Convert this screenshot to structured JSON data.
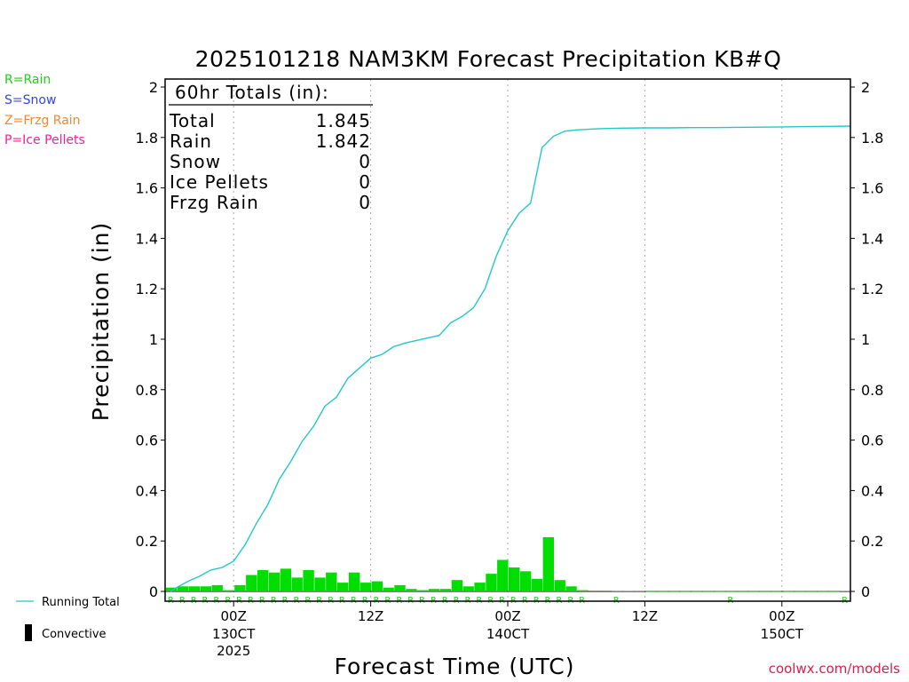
{
  "chart_data": {
    "type": "bar",
    "title": "2025101218 NAM3KM Forecast Precipitation KB#Q",
    "xlabel": "Forecast Time (UTC)",
    "ylabel": "Precipitation (in)",
    "ylim": [
      0,
      2
    ],
    "yticks": [
      "0",
      "0.2",
      "0.4",
      "0.6",
      "0.8",
      "1",
      "1.2",
      "1.4",
      "1.6",
      "1.8",
      "2"
    ],
    "xlim_hours": [
      0,
      60
    ],
    "x_ticks": [
      {
        "hour": 6,
        "label": "00Z",
        "sub": "130CT",
        "sub2": "2025"
      },
      {
        "hour": 18,
        "label": "12Z",
        "sub": "",
        "sub2": ""
      },
      {
        "hour": 30,
        "label": "00Z",
        "sub": "140CT",
        "sub2": ""
      },
      {
        "hour": 42,
        "label": "12Z",
        "sub": "",
        "sub2": ""
      },
      {
        "hour": 54,
        "label": "00Z",
        "sub": "150CT",
        "sub2": ""
      }
    ],
    "hourly_precip": {
      "color": "#00dd00",
      "start_hour": 1,
      "values": [
        0.015,
        0.02,
        0.02,
        0.02,
        0.025,
        0.005,
        0.025,
        0.065,
        0.085,
        0.075,
        0.09,
        0.055,
        0.085,
        0.055,
        0.075,
        0.035,
        0.075,
        0.035,
        0.04,
        0.015,
        0.025,
        0.01,
        0.005,
        0.01,
        0.01,
        0.045,
        0.02,
        0.035,
        0.07,
        0.125,
        0.095,
        0.08,
        0.05,
        0.215,
        0.045,
        0.02,
        0.005,
        0.003,
        0.003,
        0.002,
        0.002,
        0.002,
        0.001,
        0.001,
        0.001,
        0.001,
        0.001,
        0.001,
        0.001,
        0.001,
        0.001,
        0.001,
        0.001,
        0.001,
        0.001,
        0.001,
        0.001,
        0.001,
        0.001,
        0.002
      ]
    },
    "running_total": {
      "name": "Running Total",
      "color": "#22c8c8",
      "hours": [
        0.5,
        1,
        2,
        3,
        4,
        5,
        6,
        7,
        8,
        9,
        10,
        11,
        12,
        13,
        14,
        15,
        16,
        17,
        18,
        19,
        20,
        21,
        22,
        23,
        24,
        25,
        26,
        27,
        28,
        29,
        30,
        31,
        32,
        33,
        34,
        35,
        36,
        38,
        40,
        42,
        44,
        46,
        48,
        50,
        52,
        54,
        56,
        58,
        60
      ],
      "values": [
        0,
        0.015,
        0.04,
        0.06,
        0.085,
        0.095,
        0.12,
        0.185,
        0.27,
        0.345,
        0.445,
        0.515,
        0.595,
        0.655,
        0.735,
        0.77,
        0.845,
        0.885,
        0.925,
        0.94,
        0.97,
        0.985,
        0.995,
        1.005,
        1.015,
        1.065,
        1.09,
        1.125,
        1.2,
        1.33,
        1.43,
        1.5,
        1.54,
        1.76,
        1.805,
        1.825,
        1.83,
        1.835,
        1.837,
        1.838,
        1.838,
        1.839,
        1.839,
        1.84,
        1.841,
        1.842,
        1.843,
        1.844,
        1.845
      ]
    },
    "ptype_markers": {
      "letter": "R",
      "hours": [
        1,
        2,
        3,
        4,
        5,
        6,
        7,
        8,
        9,
        10,
        11,
        12,
        13,
        14,
        15,
        16,
        17,
        18,
        19,
        20,
        21,
        22,
        23,
        24,
        25,
        26,
        27,
        28,
        29,
        30,
        31,
        32,
        33,
        34,
        35,
        36,
        37,
        40,
        50,
        60
      ]
    },
    "totals_box": {
      "header": "60hr Totals (in):",
      "rows": [
        {
          "label": "Total",
          "value": "1.845"
        },
        {
          "label": "Rain",
          "value": "1.842"
        },
        {
          "label": "Snow",
          "value": "0"
        },
        {
          "label": "Ice Pellets",
          "value": "0"
        },
        {
          "label": "Frzg Rain",
          "value": "0"
        }
      ]
    },
    "bottom_legend": [
      {
        "label": "Running Total",
        "kind": "line",
        "color": "#22c8c8"
      },
      {
        "label": "Convective",
        "kind": "bar",
        "color": "#000000"
      }
    ]
  },
  "precip_types": [
    {
      "label": "R=Rain",
      "color": "#22cc22"
    },
    {
      "label": "S=Snow",
      "color": "#3344ee"
    },
    {
      "label": "Z=Frzg Rain",
      "color": "#ee8833"
    },
    {
      "label": "P=Ice Pellets",
      "color": "#ee2299"
    }
  ],
  "credit": "coolwx.com/models"
}
